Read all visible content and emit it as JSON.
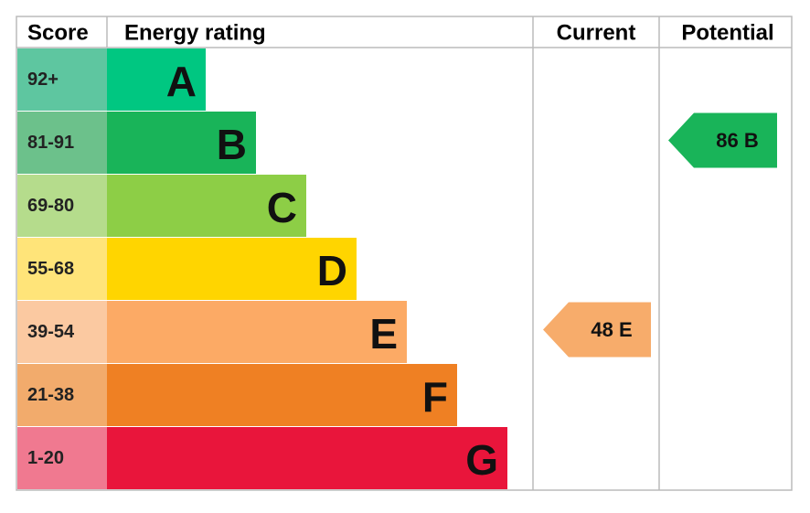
{
  "header": {
    "score": "Score",
    "rating": "Energy rating",
    "current": "Current",
    "potential": "Potential"
  },
  "bands": [
    {
      "score": "92+",
      "letter": "A",
      "color": "#00c781",
      "score_color": "#5ec6a0"
    },
    {
      "score": "81-91",
      "letter": "B",
      "color": "#19b459",
      "score_color": "#6cc18b"
    },
    {
      "score": "69-80",
      "letter": "C",
      "color": "#8dce46",
      "score_color": "#b5dc8c"
    },
    {
      "score": "55-68",
      "letter": "D",
      "color": "#ffd500",
      "score_color": "#ffe479"
    },
    {
      "score": "39-54",
      "letter": "E",
      "color": "#fcaa65",
      "score_color": "#fbc9a1"
    },
    {
      "score": "21-38",
      "letter": "F",
      "color": "#ef8023",
      "score_color": "#f2ab6c"
    },
    {
      "score": "1-20",
      "letter": "G",
      "color": "#e9153b",
      "score_color": "#f07990"
    }
  ],
  "current": {
    "label": "48 E",
    "color": "#f7ac6b"
  },
  "potential": {
    "label": "86 B",
    "color": "#19b459"
  }
}
